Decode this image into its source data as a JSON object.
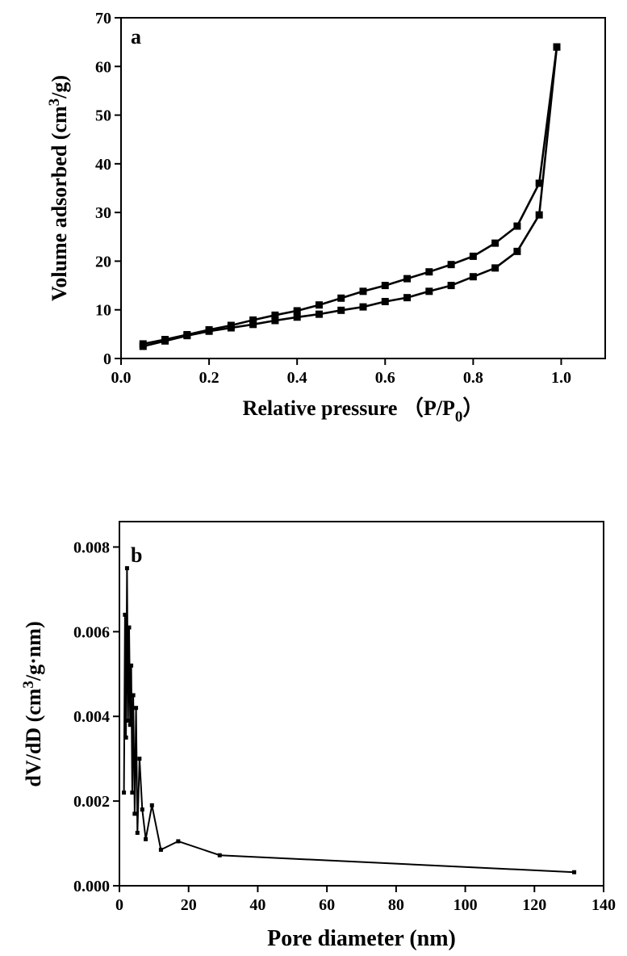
{
  "chart_data": [
    {
      "type": "line",
      "panel_label": "a",
      "xlabel": "Relative pressure （P/P",
      "xlabel_sub": "0",
      "xlabel_end": "）",
      "ylabel": "Volume adsorbed (cm",
      "ylabel_sup": "3",
      "ylabel_end": "/g)",
      "xlim": [
        0.0,
        1.1
      ],
      "ylim": [
        0,
        70
      ],
      "xticks": [
        "0.0",
        "0.2",
        "0.4",
        "0.6",
        "0.8",
        "1.0"
      ],
      "yticks": [
        "0",
        "10",
        "20",
        "30",
        "40",
        "50",
        "60",
        "70"
      ],
      "grid": false,
      "marker": "square",
      "series": [
        {
          "x": [
            0.05,
            0.1,
            0.15,
            0.2,
            0.25,
            0.3,
            0.35,
            0.4,
            0.45,
            0.5,
            0.55,
            0.6,
            0.65,
            0.7,
            0.75,
            0.8,
            0.85,
            0.9,
            0.95,
            0.99
          ],
          "y": [
            2.5,
            3.6,
            4.7,
            5.6,
            6.3,
            7.0,
            7.8,
            8.5,
            9.1,
            9.9,
            10.6,
            11.7,
            12.5,
            13.8,
            15.0,
            16.8,
            18.6,
            22.0,
            29.5,
            64.0
          ]
        },
        {
          "x": [
            0.99,
            0.95,
            0.9,
            0.85,
            0.8,
            0.75,
            0.7,
            0.65,
            0.6,
            0.55,
            0.5,
            0.45,
            0.4,
            0.35,
            0.3,
            0.25,
            0.2,
            0.15,
            0.1,
            0.05
          ],
          "y": [
            64.0,
            36.0,
            27.2,
            23.7,
            21.0,
            19.3,
            17.8,
            16.4,
            15.0,
            13.8,
            12.4,
            11.0,
            9.8,
            8.9,
            7.9,
            6.8,
            5.9,
            4.9,
            3.9,
            3.0
          ]
        }
      ]
    },
    {
      "type": "line",
      "panel_label": "b",
      "xlabel": "Pore diameter (nm)",
      "ylabel": "dV/dD (cm",
      "ylabel_sup": "3",
      "ylabel_end": "/g·nm)",
      "xlim": [
        0,
        140
      ],
      "ylim": [
        0.0,
        0.0086
      ],
      "xticks": [
        "0",
        "20",
        "40",
        "60",
        "80",
        "100",
        "120",
        "140"
      ],
      "yticks": [
        "0.000",
        "0.002",
        "0.004",
        "0.006",
        "0.008"
      ],
      "grid": false,
      "marker": "square",
      "series": [
        {
          "x": [
            1.3,
            1.6,
            1.9,
            2.2,
            2.5,
            2.8,
            3.1,
            3.4,
            3.7,
            4.0,
            4.4,
            4.8,
            5.2,
            5.8,
            6.6,
            7.6,
            9.4,
            12.0,
            17.0,
            29.0,
            131.5
          ],
          "y": [
            0.0022,
            0.0064,
            0.0035,
            0.0075,
            0.0039,
            0.0061,
            0.0038,
            0.0052,
            0.0022,
            0.0045,
            0.0017,
            0.0042,
            0.00125,
            0.003,
            0.0018,
            0.0011,
            0.0019,
            0.00085,
            0.00105,
            0.00072,
            0.00032
          ]
        }
      ]
    }
  ]
}
